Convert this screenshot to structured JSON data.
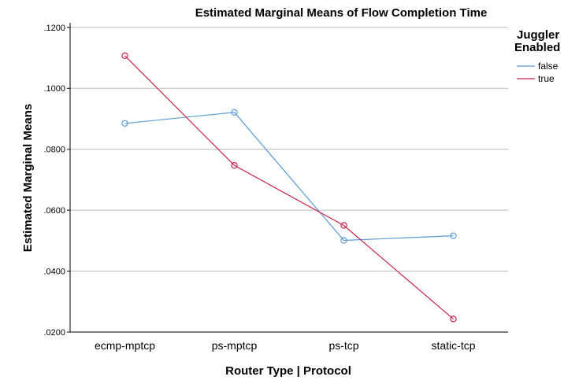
{
  "chart_data": {
    "type": "line",
    "title": "Estimated Marginal Means of Flow Completion Time",
    "xlabel": "Router Type | Protocol",
    "ylabel": "Estimated Marginal Means",
    "categories": [
      "ecmp-mptcp",
      "ps-mptcp",
      "ps-tcp",
      "static-tcp"
    ],
    "yticks": [
      ".0200",
      ".0400",
      ".0600",
      ".0800",
      ".1000",
      ".1200"
    ],
    "ylim": [
      0.02,
      0.1215
    ],
    "grid": true,
    "legend": {
      "title_line1": "Juggler",
      "title_line2": "Enabled",
      "placement": "right"
    },
    "series": [
      {
        "name": "false",
        "color": "#5b9bd5",
        "values": [
          0.0885,
          0.0921,
          0.0501,
          0.0516
        ]
      },
      {
        "name": "true",
        "color": "#c8234a",
        "values": [
          0.1107,
          0.0747,
          0.055,
          0.0243
        ]
      }
    ]
  }
}
